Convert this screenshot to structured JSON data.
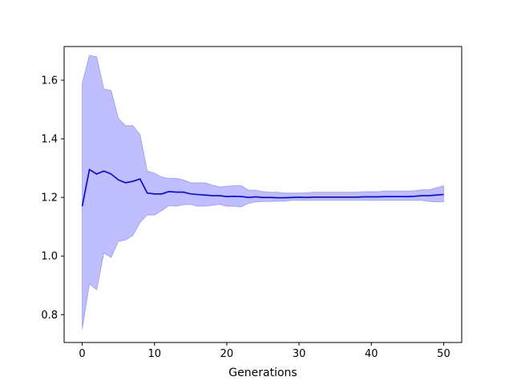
{
  "chart_data": {
    "type": "line",
    "title": "",
    "xlabel": "Generations",
    "ylabel": "",
    "xlim": [
      -2.5,
      52.5
    ],
    "ylim": [
      0.705,
      1.715
    ],
    "xticks": [
      0,
      10,
      20,
      30,
      40,
      50
    ],
    "yticks": [
      0.8,
      1.0,
      1.2,
      1.4,
      1.6
    ],
    "xtick_labels": [
      "0",
      "10",
      "20",
      "30",
      "40",
      "50"
    ],
    "ytick_labels": [
      "0.8",
      "1.0",
      "1.2",
      "1.4",
      "1.6"
    ],
    "grid": false,
    "legend": "none",
    "colors": {
      "line": "#0000ff",
      "band": "#0000ff"
    },
    "x": [
      0,
      1,
      2,
      3,
      4,
      5,
      6,
      7,
      8,
      9,
      10,
      11,
      12,
      13,
      14,
      15,
      16,
      17,
      18,
      19,
      20,
      21,
      22,
      23,
      24,
      25,
      26,
      27,
      28,
      29,
      30,
      31,
      32,
      33,
      34,
      35,
      36,
      37,
      38,
      39,
      40,
      41,
      42,
      43,
      44,
      45,
      46,
      47,
      48,
      49,
      50
    ],
    "series": [
      {
        "values": [
          1.17,
          1.295,
          1.28,
          1.29,
          1.28,
          1.26,
          1.25,
          1.255,
          1.263,
          1.215,
          1.212,
          1.212,
          1.22,
          1.218,
          1.218,
          1.212,
          1.21,
          1.208,
          1.206,
          1.206,
          1.203,
          1.204,
          1.203,
          1.2,
          1.202,
          1.2,
          1.2,
          1.199,
          1.199,
          1.2,
          1.201,
          1.2,
          1.201,
          1.201,
          1.201,
          1.201,
          1.201,
          1.201,
          1.201,
          1.202,
          1.202,
          1.202,
          1.203,
          1.203,
          1.203,
          1.203,
          1.204,
          1.206,
          1.206,
          1.208,
          1.21
        ],
        "lower": [
          0.75,
          0.905,
          0.885,
          1.01,
          0.995,
          1.05,
          1.055,
          1.07,
          1.115,
          1.14,
          1.14,
          1.155,
          1.172,
          1.17,
          1.175,
          1.176,
          1.17,
          1.17,
          1.173,
          1.176,
          1.17,
          1.17,
          1.168,
          1.18,
          1.185,
          1.186,
          1.186,
          1.187,
          1.187,
          1.19,
          1.19,
          1.19,
          1.19,
          1.19,
          1.19,
          1.19,
          1.19,
          1.19,
          1.19,
          1.19,
          1.19,
          1.19,
          1.19,
          1.19,
          1.19,
          1.19,
          1.19,
          1.19,
          1.186,
          1.185,
          1.185
        ],
        "upper": [
          1.59,
          1.685,
          1.68,
          1.57,
          1.565,
          1.47,
          1.445,
          1.445,
          1.415,
          1.29,
          1.283,
          1.27,
          1.265,
          1.265,
          1.26,
          1.25,
          1.25,
          1.25,
          1.242,
          1.236,
          1.238,
          1.24,
          1.24,
          1.225,
          1.225,
          1.22,
          1.218,
          1.218,
          1.215,
          1.215,
          1.215,
          1.216,
          1.218,
          1.218,
          1.218,
          1.218,
          1.218,
          1.218,
          1.218,
          1.22,
          1.22,
          1.22,
          1.222,
          1.222,
          1.222,
          1.222,
          1.223,
          1.226,
          1.226,
          1.233,
          1.24
        ]
      }
    ]
  }
}
